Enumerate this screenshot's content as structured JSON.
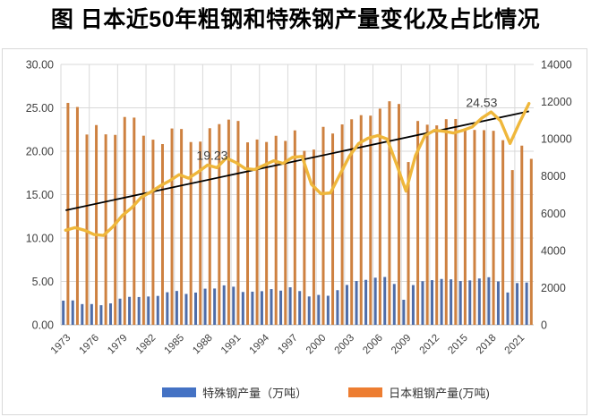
{
  "title": "图 日本近50年粗钢和特殊钢产量变化及占比情况",
  "chart_data": {
    "type": "bar",
    "subtype": "dual-axis combo: grouped bars + ratio line + linear trend line",
    "x": [
      1973,
      1974,
      1975,
      1976,
      1977,
      1978,
      1979,
      1980,
      1981,
      1982,
      1983,
      1984,
      1985,
      1986,
      1987,
      1988,
      1989,
      1990,
      1991,
      1992,
      1993,
      1994,
      1995,
      1996,
      1997,
      1998,
      1999,
      2000,
      2001,
      2002,
      2003,
      2004,
      2005,
      2006,
      2007,
      2008,
      2009,
      2010,
      2011,
      2012,
      2013,
      2014,
      2015,
      2016,
      2017,
      2018,
      2019,
      2020,
      2021,
      2022
    ],
    "series": [
      {
        "name": "特殊钢产量（万吨）",
        "type": "bar",
        "axis": "right",
        "color": "#4f6da8",
        "values": [
          1301,
          1312,
          1115,
          1117,
          1055,
          1154,
          1408,
          1504,
          1495,
          1523,
          1555,
          1752,
          1821,
          1661,
          1734,
          1945,
          1953,
          2122,
          2050,
          1766,
          1783,
          1809,
          1921,
          1839,
          2018,
          1815,
          1526,
          1607,
          1563,
          1864,
          2144,
          2356,
          2418,
          2534,
          2572,
          2197,
          1348,
          2137,
          2346,
          2402,
          2466,
          2446,
          2355,
          2389,
          2491,
          2559,
          2333,
          1739,
          2245,
          2275
        ]
      },
      {
        "name": "日本粗钢产量(万吨)",
        "type": "bar",
        "axis": "right",
        "color": "#ce8140",
        "values": [
          11932,
          11713,
          10231,
          10740,
          10241,
          10211,
          11175,
          11141,
          10168,
          9955,
          9718,
          10556,
          10528,
          9827,
          9851,
          10571,
          10791,
          11034,
          10961,
          9810,
          9963,
          9830,
          10164,
          9888,
          10455,
          9355,
          9422,
          10644,
          10286,
          10775,
          11051,
          11272,
          11247,
          11622,
          12020,
          11874,
          8753,
          10960,
          10760,
          10723,
          11057,
          11067,
          10515,
          10478,
          10466,
          10432,
          9928,
          8319,
          9634,
          8923
        ]
      }
    ],
    "ratio_line": {
      "name": "ratio-line",
      "type": "line",
      "axis": "left",
      "color": "#efb73b",
      "values": [
        10.9,
        11.2,
        10.9,
        10.4,
        10.3,
        11.3,
        12.6,
        13.5,
        14.7,
        15.3,
        16.0,
        16.6,
        17.3,
        16.9,
        17.6,
        18.4,
        18.1,
        19.23,
        18.7,
        18.0,
        17.9,
        18.4,
        18.9,
        18.6,
        19.3,
        19.4,
        16.2,
        15.1,
        15.2,
        17.3,
        19.4,
        20.9,
        21.5,
        21.8,
        21.4,
        18.5,
        15.4,
        19.5,
        21.8,
        22.4,
        22.3,
        22.1,
        22.4,
        22.8,
        23.8,
        24.53,
        23.5,
        20.9,
        23.3,
        25.5
      ]
    },
    "trend_line": {
      "color": "#000000",
      "start_year": 1973,
      "start_value": 13.2,
      "end_year": 2022,
      "end_value": 24.6
    },
    "annotations": [
      {
        "text": "19.23",
        "year": 1988.5,
        "value": 19.0
      },
      {
        "text": "24.53",
        "year": 2017.0,
        "value": 25.1
      }
    ],
    "left_axis": {
      "min": 0,
      "max": 30,
      "step": 5,
      "ticks": [
        "30.00",
        "25.00",
        "20.00",
        "15.00",
        "10.00",
        "5.00",
        "0.00"
      ]
    },
    "right_axis": {
      "min": 0,
      "max": 14000,
      "step": 2000,
      "ticks": [
        "14000",
        "12000",
        "10000",
        "8000",
        "6000",
        "4000",
        "2000",
        "0"
      ]
    },
    "x_axis": {
      "tick_step_years": 3,
      "ticks": [
        "1973",
        "1976",
        "1979",
        "1982",
        "1985",
        "1988",
        "1991",
        "1994",
        "1997",
        "2000",
        "2003",
        "2006",
        "2009",
        "2012",
        "2015",
        "2018",
        "2021"
      ]
    },
    "grid": {
      "horizontal": true,
      "vertical": true,
      "color": "#d9d9d9",
      "axis_line_color": "#bfbfbf"
    },
    "legend": [
      {
        "label": "特殊钢产量（万吨）",
        "color": "#4472c4"
      },
      {
        "label": "日本粗钢产量(万吨)",
        "color": "#ed7d31"
      }
    ],
    "legend_position": "bottom"
  }
}
